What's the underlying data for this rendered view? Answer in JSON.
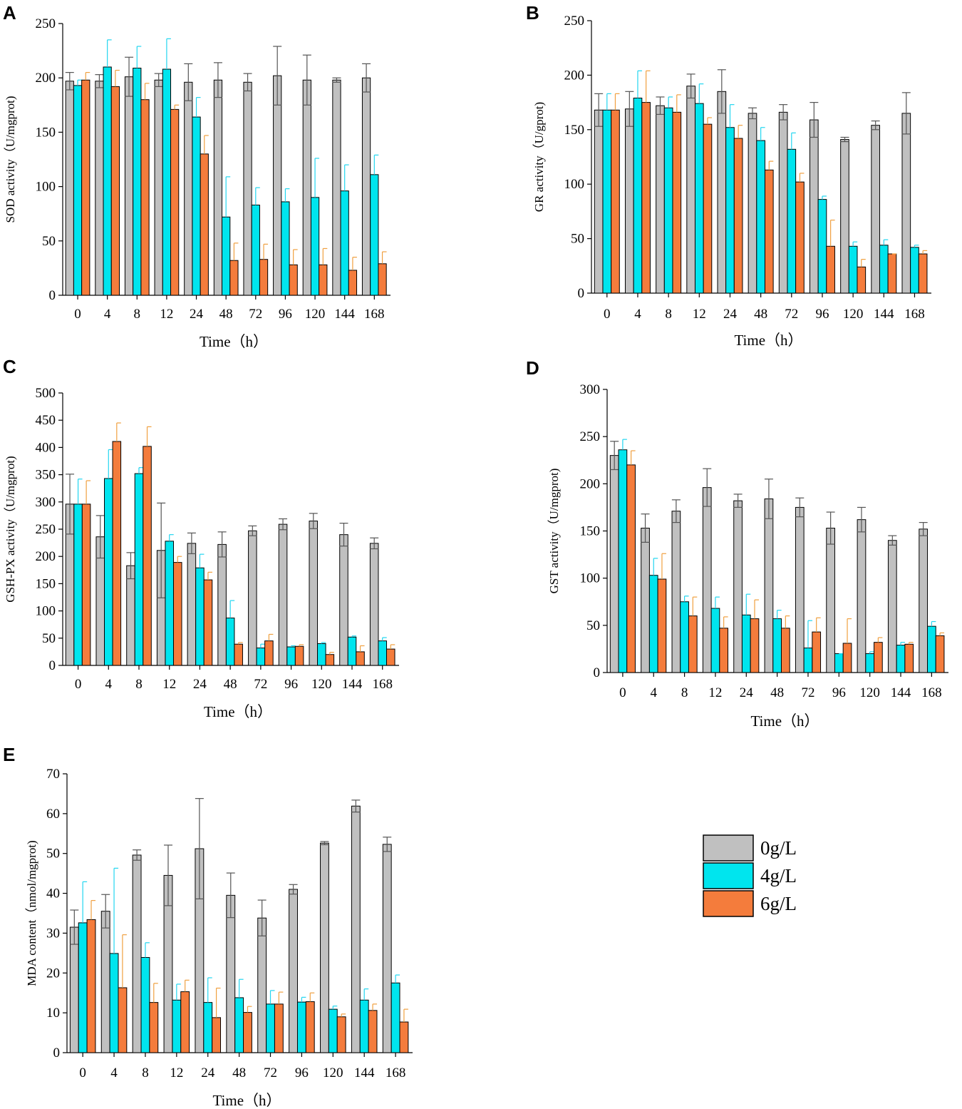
{
  "series_colors": {
    "0g/L": "#c0c0c0",
    "4g/L": "#00e5ee",
    "6g/L": "#f47c3c"
  },
  "error_colors": {
    "0g/L": "#555555",
    "4g/L": "#22d6f0",
    "6g/L": "#f0a040"
  },
  "legend": {
    "items": [
      "0g/L",
      "4g/L",
      "6g/L"
    ]
  },
  "chart_data": [
    {
      "panel": "A",
      "type": "bar",
      "categories": [
        "0",
        "4",
        "8",
        "12",
        "24",
        "48",
        "72",
        "96",
        "120",
        "144",
        "168"
      ],
      "xlabel": "Time（h）",
      "ylabel": "SOD activity（U/mgprot)",
      "ylim": [
        0,
        250
      ],
      "yticks": [
        0,
        50,
        100,
        150,
        200,
        250
      ],
      "series": [
        {
          "name": "0g/L",
          "values": [
            197,
            197,
            201,
            198,
            196,
            198,
            196,
            202,
            198,
            198,
            200
          ],
          "errors": [
            8,
            6,
            18,
            6,
            17,
            16,
            8,
            27,
            23,
            2,
            13
          ]
        },
        {
          "name": "4g/L",
          "values": [
            193,
            210,
            209,
            208,
            164,
            72,
            83,
            86,
            90,
            96,
            111
          ],
          "errors": [
            5,
            25,
            20,
            28,
            18,
            37,
            16,
            12,
            36,
            24,
            18
          ]
        },
        {
          "name": "6g/L",
          "values": [
            198,
            192,
            180,
            171,
            130,
            32,
            33,
            28,
            28,
            23,
            29
          ],
          "errors": [
            7,
            15,
            15,
            4,
            17,
            16,
            14,
            14,
            15,
            12,
            11
          ]
        }
      ]
    },
    {
      "panel": "B",
      "type": "bar",
      "categories": [
        "0",
        "4",
        "8",
        "12",
        "24",
        "48",
        "72",
        "96",
        "120",
        "144",
        "168"
      ],
      "xlabel": "Time（h）",
      "ylabel": "GR activity（U/gprot)",
      "ylim": [
        0,
        250
      ],
      "yticks": [
        0,
        50,
        100,
        150,
        200,
        250
      ],
      "series": [
        {
          "name": "0g/L",
          "values": [
            168,
            169,
            172,
            190,
            185,
            165,
            166,
            159,
            141,
            154,
            165
          ],
          "errors": [
            15,
            16,
            8,
            11,
            20,
            5,
            7,
            16,
            2,
            4,
            19
          ]
        },
        {
          "name": "4g/L",
          "values": [
            168,
            179,
            170,
            174,
            152,
            140,
            132,
            86,
            43,
            44,
            42
          ],
          "errors": [
            15,
            25,
            10,
            18,
            21,
            12,
            15,
            3,
            4,
            5,
            2
          ]
        },
        {
          "name": "6g/L",
          "values": [
            168,
            175,
            166,
            155,
            142,
            113,
            102,
            43,
            24,
            36,
            36
          ],
          "errors": [
            15,
            29,
            16,
            6,
            12,
            8,
            8,
            24,
            7,
            0,
            3
          ]
        }
      ]
    },
    {
      "panel": "C",
      "type": "bar",
      "categories": [
        "0",
        "4",
        "8",
        "12",
        "24",
        "48",
        "72",
        "96",
        "120",
        "144",
        "168"
      ],
      "xlabel": "Time（h）",
      "ylabel": "GSH-PX activity（U/mgprot)",
      "ylim": [
        0,
        500
      ],
      "yticks": [
        0,
        50,
        100,
        150,
        200,
        250,
        300,
        350,
        400,
        450,
        500
      ],
      "series": [
        {
          "name": "0g/L",
          "values": [
            296,
            236,
            183,
            211,
            224,
            222,
            247,
            259,
            265,
            240,
            224
          ],
          "errors": [
            55,
            39,
            24,
            87,
            19,
            23,
            9,
            10,
            14,
            21,
            10
          ]
        },
        {
          "name": "4g/L",
          "values": [
            296,
            343,
            352,
            228,
            179,
            87,
            32,
            34,
            40,
            52,
            45
          ],
          "errors": [
            46,
            53,
            11,
            12,
            25,
            32,
            7,
            2,
            2,
            2,
            6
          ]
        },
        {
          "name": "6g/L",
          "values": [
            296,
            411,
            402,
            189,
            157,
            39,
            45,
            35,
            20,
            25,
            30
          ],
          "errors": [
            43,
            34,
            36,
            11,
            14,
            3,
            12,
            3,
            4,
            11,
            8
          ]
        }
      ]
    },
    {
      "panel": "D",
      "type": "bar",
      "categories": [
        "0",
        "4",
        "8",
        "12",
        "24",
        "48",
        "72",
        "96",
        "120",
        "144",
        "168"
      ],
      "xlabel": "Time（h）",
      "ylabel": "GST activity（U/mgprot)",
      "ylim": [
        0,
        300
      ],
      "yticks": [
        0,
        50,
        100,
        150,
        200,
        250,
        300
      ],
      "series": [
        {
          "name": "0g/L",
          "values": [
            230,
            153,
            171,
            196,
            182,
            184,
            175,
            153,
            162,
            140,
            152
          ],
          "errors": [
            15,
            15,
            12,
            20,
            7,
            21,
            10,
            17,
            13,
            5,
            7
          ]
        },
        {
          "name": "4g/L",
          "values": [
            236,
            103,
            75,
            68,
            61,
            57,
            26,
            20,
            20,
            29,
            49
          ],
          "errors": [
            11,
            18,
            6,
            12,
            22,
            9,
            29,
            0,
            2,
            3,
            5
          ]
        },
        {
          "name": "6g/L",
          "values": [
            220,
            99,
            60,
            47,
            57,
            47,
            43,
            31,
            32,
            30,
            39
          ],
          "errors": [
            15,
            27,
            20,
            12,
            20,
            13,
            15,
            26,
            5,
            2,
            3
          ]
        }
      ]
    },
    {
      "panel": "E",
      "type": "bar",
      "categories": [
        "0",
        "4",
        "8",
        "12",
        "24",
        "48",
        "72",
        "96",
        "120",
        "144",
        "168"
      ],
      "xlabel": "Time（h）",
      "ylabel": "MDA content（nmol/mgprot)",
      "ylim": [
        0,
        70
      ],
      "yticks": [
        0,
        10,
        20,
        30,
        40,
        50,
        60,
        70
      ],
      "series": [
        {
          "name": "0g/L",
          "values": [
            31.5,
            35.5,
            49.6,
            44.5,
            51.2,
            39.5,
            33.8,
            41.0,
            52.6,
            61.9,
            52.3
          ],
          "errors": [
            4.3,
            4.2,
            1.3,
            7.6,
            12.6,
            5.6,
            4.5,
            1.2,
            0.4,
            1.5,
            1.8
          ]
        },
        {
          "name": "4g/L",
          "values": [
            32.6,
            24.9,
            23.9,
            13.2,
            12.6,
            13.8,
            12.2,
            12.7,
            10.9,
            13.2,
            17.5
          ],
          "errors": [
            10.3,
            21.4,
            3.7,
            4.0,
            6.2,
            4.6,
            3.4,
            1.2,
            0.8,
            2.8,
            2.0
          ]
        },
        {
          "name": "6g/L",
          "values": [
            33.4,
            16.3,
            12.6,
            15.3,
            8.8,
            10.1,
            12.2,
            12.8,
            9.0,
            10.6,
            7.7
          ],
          "errors": [
            4.8,
            13.3,
            4.8,
            2.9,
            7.4,
            1.5,
            3.0,
            2.2,
            0.7,
            1.6,
            3.2
          ]
        }
      ]
    }
  ]
}
